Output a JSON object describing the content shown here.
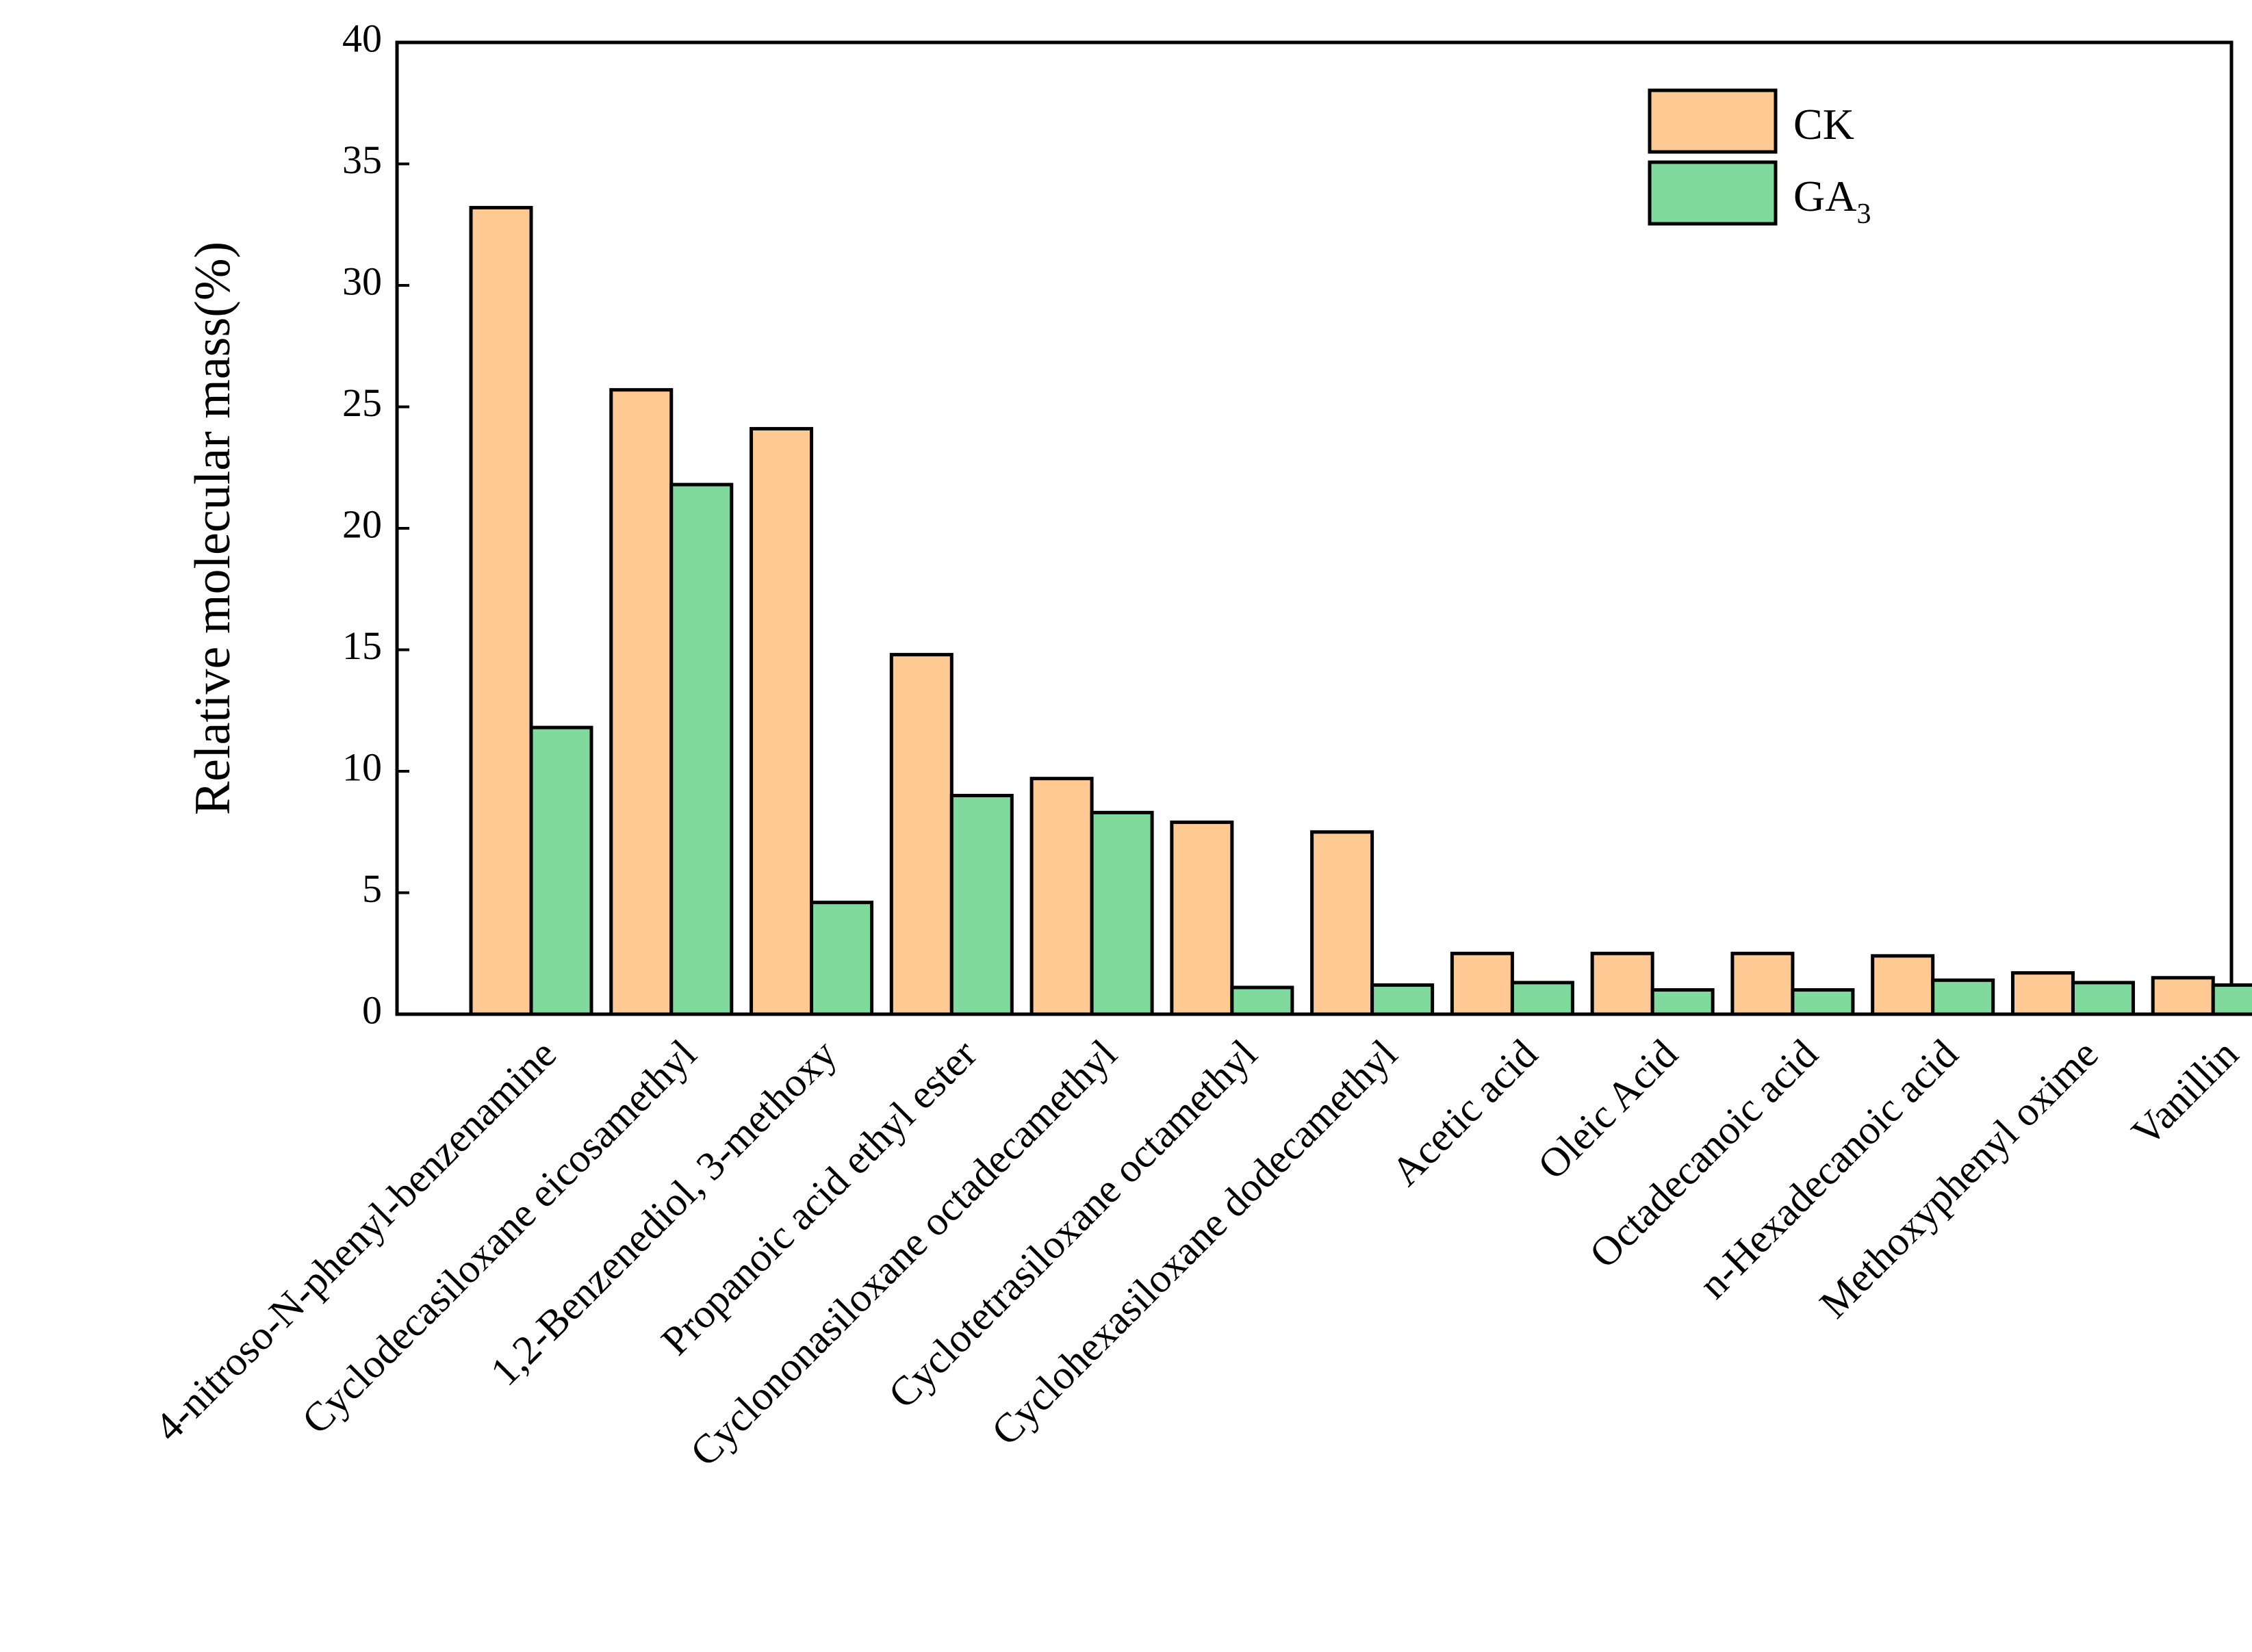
{
  "chart_data": {
    "type": "bar",
    "title": "",
    "xlabel": "",
    "ylabel": "Relative molecular mass(%)",
    "ylim": [
      0,
      40
    ],
    "yticks": [
      "0",
      "5",
      "10",
      "15",
      "20",
      "25",
      "30",
      "35",
      "40"
    ],
    "grid": false,
    "legend_position": "top-right",
    "categories": [
      "4-nitroso-N-phenyl-benzenamine",
      "Cyclodecasiloxane eicosamethyl",
      "1,2-Benzenediol, 3-methoxy",
      "Propanoic acid ethyl ester",
      "Cyclononasiloxane octadecamethyl",
      "Cyclotetrasiloxane octamethyl",
      "Cyclohexasiloxane dodecamethyl",
      "Acetic acid",
      "Oleic Acid",
      "Octadecanoic acid",
      "n-Hexadecanoic acid",
      "Methoxyphenyl oxime",
      "Vanillin"
    ],
    "series": [
      {
        "name": "CK",
        "color": "#FFC994",
        "values": [
          33.2,
          25.7,
          24.1,
          14.8,
          9.7,
          7.9,
          7.5,
          2.5,
          2.5,
          2.5,
          2.4,
          1.7,
          1.5
        ]
      },
      {
        "name": "GA3",
        "name_main": "GA",
        "name_sub": "3",
        "color": "#80D99D",
        "values": [
          11.8,
          21.8,
          4.6,
          9.0,
          8.3,
          1.1,
          1.2,
          1.3,
          1.0,
          1.0,
          1.4,
          1.3,
          1.2
        ]
      }
    ]
  }
}
